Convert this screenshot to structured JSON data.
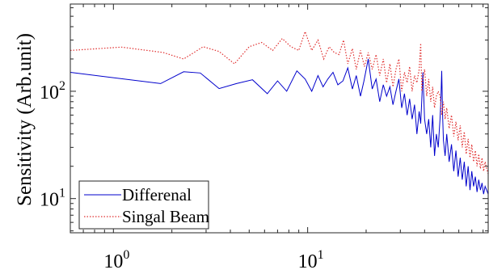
{
  "chart_data": {
    "type": "line",
    "title": "",
    "xlabel": "",
    "ylabel": "Sensitivity (Arb.unit)",
    "xscale": "log",
    "yscale": "log",
    "xlim": [
      0.6,
      85
    ],
    "ylim": [
      4.8,
      650
    ],
    "x_ticks": [
      {
        "base": "10",
        "exp": "0",
        "value": 1
      },
      {
        "base": "10",
        "exp": "1",
        "value": 10
      }
    ],
    "y_ticks": [
      {
        "base": "10",
        "exp": "1",
        "value": 10
      },
      {
        "base": "10",
        "exp": "2",
        "value": 100
      }
    ],
    "grid": false,
    "legend_position": "bottom-left",
    "series": [
      {
        "name": "Differenal",
        "color": "#0000cc",
        "line_style": "solid",
        "x": [
          0.6,
          1.75,
          2.3,
          2.8,
          3.5,
          4.3,
          5.2,
          6.2,
          7.0,
          7.8,
          8.8,
          9.7,
          10.5,
          11.3,
          12.0,
          12.7,
          13.5,
          14.3,
          15.2,
          16.1,
          17.0,
          17.8,
          18.7,
          19.5,
          20.5,
          21.5,
          22.5,
          23.5,
          24.5,
          25.5,
          26.5,
          27.5,
          28.5,
          29.5,
          30.5,
          31.5,
          32.5,
          33.5,
          34.5,
          35.5,
          36.5,
          37.5,
          38.2,
          38.7,
          39.2,
          40.0,
          41.0,
          42.0,
          43.0,
          44.0,
          45.0,
          46.0,
          47.0,
          48.0,
          48.5,
          49.0,
          49.5,
          50.0,
          51.0,
          52.0,
          53.5,
          55.0,
          56.5,
          58.0,
          59.5,
          61.0,
          62.5,
          64.0,
          65.5,
          67.0,
          68.5,
          70.0,
          71.5,
          73.0,
          74.5,
          76.0,
          77.5,
          79.0,
          80.5,
          82.0,
          83.5,
          85.0
        ],
        "values": [
          150,
          118,
          152,
          148,
          106,
          118,
          128,
          95,
          125,
          100,
          155,
          130,
          100,
          140,
          110,
          130,
          150,
          115,
          125,
          165,
          105,
          140,
          90,
          125,
          200,
          105,
          130,
          80,
          115,
          90,
          110,
          75,
          100,
          130,
          70,
          95,
          60,
          85,
          55,
          75,
          40,
          65,
          50,
          85,
          150,
          55,
          40,
          55,
          30,
          60,
          25,
          40,
          30,
          55,
          80,
          155,
          60,
          35,
          25,
          40,
          22,
          32,
          18,
          28,
          16,
          24,
          15,
          22,
          13,
          20,
          12,
          18,
          13,
          16,
          11.5,
          15,
          12,
          14,
          11,
          13,
          12,
          11
        ]
      },
      {
        "name": "Singal Beam",
        "color": "#e03030",
        "line_style": "dotted",
        "x": [
          0.6,
          1.1,
          1.8,
          2.3,
          2.9,
          3.5,
          4.2,
          5.0,
          5.8,
          6.6,
          7.4,
          8.2,
          9.0,
          9.7,
          10.5,
          11.3,
          12.1,
          12.9,
          13.7,
          14.5,
          15.3,
          16.1,
          17.0,
          17.8,
          18.7,
          19.6,
          20.5,
          21.5,
          22.5,
          23.5,
          24.5,
          25.5,
          26.5,
          27.5,
          28.5,
          29.5,
          30.5,
          31.5,
          32.5,
          33.5,
          34.5,
          35.5,
          36.5,
          37.5,
          38.2,
          38.7,
          39.2,
          40.0,
          41.0,
          42.0,
          43.0,
          44.0,
          45.0,
          46.0,
          47.0,
          48.0,
          49.0,
          50.0,
          51.0,
          52.0,
          53.5,
          55.0,
          56.5,
          58.0,
          59.5,
          61.0,
          62.5,
          64.0,
          65.5,
          67.0,
          68.5,
          70.0,
          71.5,
          73.0,
          74.5,
          76.0,
          77.5,
          79.0,
          80.5,
          82.0,
          83.5,
          85.0
        ],
        "values": [
          240,
          258,
          230,
          200,
          260,
          235,
          180,
          260,
          285,
          240,
          310,
          260,
          240,
          360,
          240,
          300,
          200,
          260,
          230,
          220,
          300,
          180,
          250,
          160,
          240,
          170,
          230,
          160,
          220,
          140,
          200,
          120,
          180,
          110,
          160,
          200,
          100,
          150,
          120,
          170,
          100,
          140,
          120,
          160,
          280,
          100,
          130,
          160,
          90,
          130,
          80,
          110,
          70,
          90,
          100,
          90,
          60,
          80,
          55,
          70,
          45,
          60,
          38,
          52,
          35,
          48,
          30,
          42,
          26,
          36,
          24,
          32,
          22,
          28,
          20,
          26,
          19,
          24,
          18,
          22,
          19,
          17
        ]
      }
    ]
  }
}
